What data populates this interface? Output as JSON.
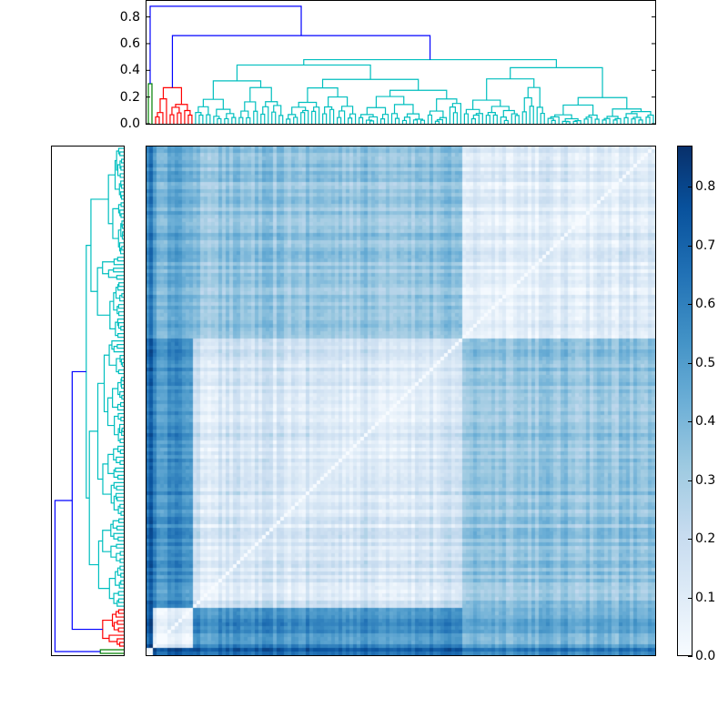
{
  "chart_data": {
    "type": "heatmap",
    "title": "",
    "description": "Clustered distance matrix heatmap with hierarchical clustering dendrograms on top and left, and a colorbar on the right",
    "colormap": "Blues",
    "colorbar": {
      "min": 0.0,
      "max": 0.87,
      "ticks": [
        "0.0",
        "0.1",
        "0.2",
        "0.3",
        "0.4",
        "0.5",
        "0.6",
        "0.7",
        "0.8"
      ]
    },
    "top_dendrogram": {
      "yaxis_ticks": [
        "0.0",
        "0.2",
        "0.4",
        "0.6",
        "0.8"
      ],
      "ylim": [
        0,
        0.92
      ],
      "cluster_colors": {
        "green": "#008000",
        "red": "#ff0000",
        "cyan": "#00bfbf",
        "link": "#0000ff"
      },
      "top_links": [
        {
          "height": 0.88,
          "color": "#0000ff",
          "joins": [
            "green",
            "rest"
          ]
        },
        {
          "height": 0.66,
          "color": "#0000ff",
          "joins": [
            "red",
            "cyan"
          ]
        },
        {
          "height": 0.48,
          "color": "#00bfbf",
          "joins": [
            "cyan-A",
            "cyan-B"
          ]
        }
      ]
    },
    "clusters": [
      {
        "name": "green",
        "color": "#008000",
        "fraction": 0.012,
        "height": 0.3
      },
      {
        "name": "red",
        "color": "#ff0000",
        "fraction": 0.078,
        "height": 0.27
      },
      {
        "name": "cyan-A",
        "color": "#00bfbf",
        "fraction": 0.527,
        "height": 0.44
      },
      {
        "name": "cyan-B",
        "color": "#00bfbf",
        "fraction": 0.383,
        "height": 0.42
      }
    ],
    "block_means": [
      [
        0.05,
        0.75,
        0.7,
        0.62
      ],
      [
        0.75,
        0.1,
        0.55,
        0.45
      ],
      [
        0.7,
        0.55,
        0.12,
        0.35
      ],
      [
        0.62,
        0.45,
        0.35,
        0.1
      ]
    ],
    "diagonal": "zero distance (white) from bottom-left to top-right"
  }
}
